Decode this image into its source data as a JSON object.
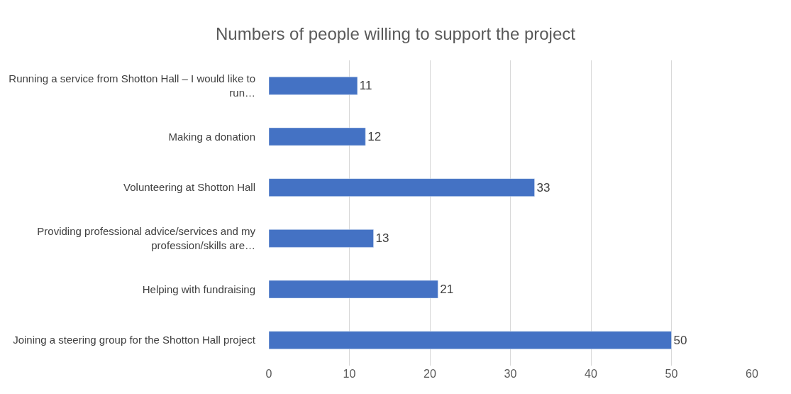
{
  "chart_data": {
    "type": "bar",
    "orientation": "horizontal",
    "title": "Numbers of people willing to support the project",
    "categories": [
      "Running a service from Shotton Hall – I would like to run…",
      "Making a donation",
      "Volunteering at Shotton Hall",
      "Providing professional advice/services and my profession/skills are…",
      "Helping with fundraising",
      "Joining a steering group for the Shotton Hall project"
    ],
    "values": [
      11,
      12,
      33,
      13,
      21,
      50
    ],
    "color": "#4472c4",
    "xlim": [
      0,
      60
    ],
    "xticks": [
      0,
      10,
      20,
      30,
      40,
      50,
      60
    ],
    "grid": "x",
    "data_labels": true
  }
}
